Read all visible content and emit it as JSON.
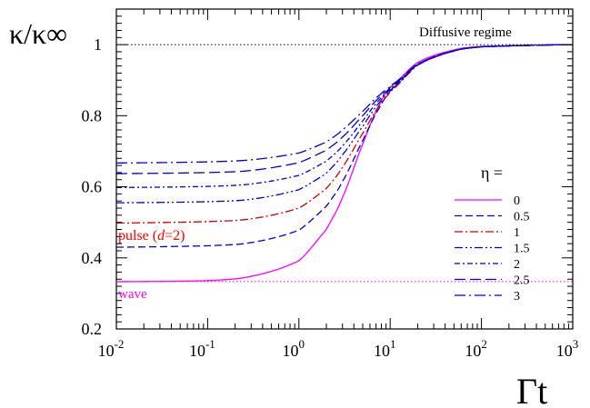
{
  "chart_data": {
    "type": "line",
    "x_scale": "log",
    "xlim": [
      0.01,
      1000
    ],
    "ylim": [
      0.2,
      1.1
    ],
    "xlabel": "Γt",
    "ylabel": "κ/κ∞",
    "x_ticks": [
      {
        "base": "10",
        "exp": "-2",
        "value": 0.01
      },
      {
        "base": "10",
        "exp": "-1",
        "value": 0.1
      },
      {
        "base": "10",
        "exp": "0",
        "value": 1
      },
      {
        "base": "10",
        "exp": "1",
        "value": 10
      },
      {
        "base": "10",
        "exp": "2",
        "value": 100
      },
      {
        "base": "10",
        "exp": "3",
        "value": 1000
      }
    ],
    "y_ticks": [
      {
        "label": "0.2",
        "value": 0.2
      },
      {
        "label": "0.4",
        "value": 0.4
      },
      {
        "label": "0.6",
        "value": 0.6
      },
      {
        "label": "0.8",
        "value": 0.8
      },
      {
        "label": "1",
        "value": 1.0
      }
    ],
    "legend_title": "η =",
    "legend_position": "center-right",
    "series": [
      {
        "name": "0",
        "color": "#ff00ff",
        "dash": "solid",
        "points": [
          [
            0.01,
            0.333
          ],
          [
            0.1,
            0.336
          ],
          [
            0.3,
            0.348
          ],
          [
            1,
            0.392
          ],
          [
            2,
            0.48
          ],
          [
            3,
            0.57
          ],
          [
            5,
            0.72
          ],
          [
            8,
            0.84
          ],
          [
            10,
            0.88
          ],
          [
            20,
            0.95
          ],
          [
            50,
            0.985
          ],
          [
            100,
            0.995
          ],
          [
            1000,
            1.0
          ]
        ]
      },
      {
        "name": "0.5",
        "color": "#0000cc",
        "dash": "dashed",
        "points": [
          [
            0.01,
            0.43
          ],
          [
            0.1,
            0.434
          ],
          [
            0.3,
            0.443
          ],
          [
            1,
            0.478
          ],
          [
            2,
            0.545
          ],
          [
            3,
            0.615
          ],
          [
            5,
            0.73
          ],
          [
            8,
            0.83
          ],
          [
            10,
            0.87
          ],
          [
            20,
            0.945
          ],
          [
            50,
            0.983
          ],
          [
            100,
            0.994
          ],
          [
            1000,
            1.0
          ]
        ]
      },
      {
        "name": "1",
        "color": "#cc0000",
        "dash": "dashdot",
        "points": [
          [
            0.01,
            0.498
          ],
          [
            0.1,
            0.502
          ],
          [
            0.3,
            0.51
          ],
          [
            1,
            0.54
          ],
          [
            2,
            0.595
          ],
          [
            3,
            0.655
          ],
          [
            5,
            0.75
          ],
          [
            8,
            0.835
          ],
          [
            10,
            0.868
          ],
          [
            20,
            0.942
          ],
          [
            50,
            0.982
          ],
          [
            100,
            0.994
          ],
          [
            1000,
            1.0
          ]
        ]
      },
      {
        "name": "1.5",
        "color": "#0000cc",
        "dash": "dashdotdot",
        "points": [
          [
            0.01,
            0.555
          ],
          [
            0.1,
            0.558
          ],
          [
            0.3,
            0.565
          ],
          [
            1,
            0.592
          ],
          [
            2,
            0.638
          ],
          [
            3,
            0.69
          ],
          [
            5,
            0.77
          ],
          [
            8,
            0.843
          ],
          [
            10,
            0.872
          ],
          [
            20,
            0.943
          ],
          [
            50,
            0.982
          ],
          [
            100,
            0.994
          ],
          [
            1000,
            1.0
          ]
        ]
      },
      {
        "name": "2",
        "color": "#0000cc",
        "dash": "dashdot2",
        "points": [
          [
            0.01,
            0.598
          ],
          [
            0.1,
            0.601
          ],
          [
            0.3,
            0.608
          ],
          [
            1,
            0.632
          ],
          [
            2,
            0.672
          ],
          [
            3,
            0.715
          ],
          [
            5,
            0.785
          ],
          [
            8,
            0.85
          ],
          [
            10,
            0.876
          ],
          [
            20,
            0.944
          ],
          [
            50,
            0.982
          ],
          [
            100,
            0.994
          ],
          [
            1000,
            1.0
          ]
        ]
      },
      {
        "name": "2.5",
        "color": "#0000cc",
        "dash": "longdash",
        "points": [
          [
            0.01,
            0.637
          ],
          [
            0.1,
            0.64
          ],
          [
            0.3,
            0.646
          ],
          [
            1,
            0.668
          ],
          [
            2,
            0.703
          ],
          [
            3,
            0.74
          ],
          [
            5,
            0.8
          ],
          [
            8,
            0.856
          ],
          [
            10,
            0.88
          ],
          [
            20,
            0.945
          ],
          [
            50,
            0.982
          ],
          [
            100,
            0.994
          ],
          [
            1000,
            1.0
          ]
        ]
      },
      {
        "name": "3",
        "color": "#0000cc",
        "dash": "longdashdot",
        "points": [
          [
            0.01,
            0.667
          ],
          [
            0.1,
            0.67
          ],
          [
            0.3,
            0.676
          ],
          [
            1,
            0.695
          ],
          [
            2,
            0.726
          ],
          [
            3,
            0.76
          ],
          [
            5,
            0.812
          ],
          [
            8,
            0.862
          ],
          [
            10,
            0.884
          ],
          [
            20,
            0.946
          ],
          [
            50,
            0.982
          ],
          [
            100,
            0.994
          ],
          [
            1000,
            1.0
          ]
        ]
      }
    ],
    "reference_lines": [
      {
        "y": 1.0,
        "color": "#000000",
        "label": "Diffusive regime"
      },
      {
        "y": 0.3333,
        "color": "#ff00ff",
        "label": "wave"
      }
    ],
    "annotations": [
      {
        "text": "pulse (d=2)",
        "color": "#ff0000"
      }
    ]
  }
}
